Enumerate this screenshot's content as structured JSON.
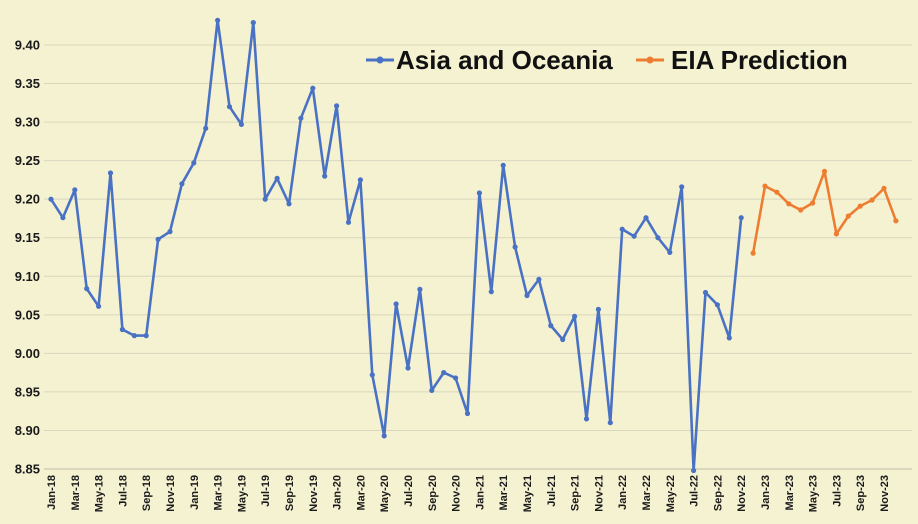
{
  "chart_data": {
    "type": "line",
    "title": "",
    "xlabel": "",
    "ylabel": "",
    "ylim": [
      8.85,
      9.43
    ],
    "yticks": [
      "8.85",
      "8.90",
      "8.95",
      "9.00",
      "9.05",
      "9.10",
      "9.15",
      "9.20",
      "9.25",
      "9.30",
      "9.35",
      "9.40"
    ],
    "xtick_labels": [
      "Jan-18",
      "Mar-18",
      "May-18",
      "Jul-18",
      "Sep-18",
      "Nov-18",
      "Jan-19",
      "Mar-19",
      "May-19",
      "Jul-19",
      "Sep-19",
      "Nov-19",
      "Jan-20",
      "Mar-20",
      "May-20",
      "Jul-20",
      "Sep-20",
      "Nov-20",
      "Jan-21",
      "Mar-21",
      "May-21",
      "Jul-21",
      "Sep-21",
      "Nov-21",
      "Jan-22",
      "Mar-22",
      "May-22",
      "Jul-22",
      "Sep-22",
      "Nov-22",
      "Jan-23",
      "Mar-23",
      "May-23",
      "Jul-23",
      "Sep-23",
      "Nov-23"
    ],
    "grid": true,
    "legend_position": "top-right",
    "series": [
      {
        "name": "Asia and Oceania",
        "color": "#4a72c4",
        "start_index": 0,
        "values": [
          9.2,
          9.176,
          9.212,
          9.084,
          9.061,
          9.234,
          9.031,
          9.023,
          9.023,
          9.148,
          9.158,
          9.22,
          9.247,
          9.292,
          9.432,
          9.32,
          9.297,
          9.429,
          9.2,
          9.227,
          9.194,
          9.305,
          9.344,
          9.23,
          9.321,
          9.17,
          9.225,
          8.972,
          8.893,
          9.064,
          8.981,
          9.083,
          8.952,
          8.975,
          8.968,
          8.922,
          9.208,
          9.08,
          9.244,
          9.138,
          9.075,
          9.096,
          9.036,
          9.018,
          9.048,
          8.915,
          9.057,
          8.91,
          9.161,
          9.152,
          9.176,
          9.15,
          9.131,
          9.216,
          8.848,
          9.079,
          9.063,
          9.02,
          9.176
        ]
      },
      {
        "name": "EIA Prediction",
        "color": "#ed7d31",
        "start_index": 59,
        "values": [
          9.13,
          9.217,
          9.209,
          9.194,
          9.186,
          9.195,
          9.236,
          9.155,
          9.178,
          9.191,
          9.199,
          9.214,
          9.172
        ]
      }
    ]
  }
}
